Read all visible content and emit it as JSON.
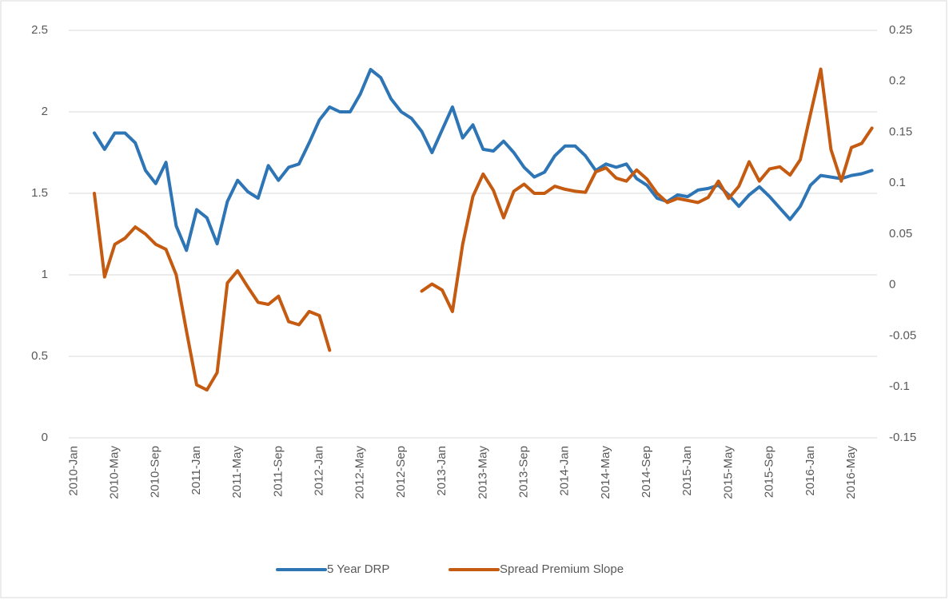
{
  "chart_data": {
    "type": "line",
    "categories": [
      "2010-Jan",
      null,
      null,
      null,
      "2010-May",
      null,
      null,
      null,
      "2010-Sep",
      null,
      null,
      null,
      "2011-Jan",
      null,
      null,
      null,
      "2011-May",
      null,
      null,
      null,
      "2011-Sep",
      null,
      null,
      null,
      "2012-Jan",
      null,
      null,
      null,
      "2012-May",
      null,
      null,
      null,
      "2012-Sep",
      null,
      null,
      null,
      "2013-Jan",
      null,
      null,
      null,
      "2013-May",
      null,
      null,
      null,
      "2013-Sep",
      null,
      null,
      null,
      "2014-Jan",
      null,
      null,
      null,
      "2014-May",
      null,
      null,
      null,
      "2014-Sep",
      null,
      null,
      null,
      "2015-Jan",
      null,
      null,
      null,
      "2015-May",
      null,
      null,
      null,
      "2015-Sep",
      null,
      null,
      null,
      "2016-Jan",
      null,
      null,
      null,
      "2016-May",
      null,
      null
    ],
    "series": [
      {
        "name": "5 Year DRP",
        "color": "#2e75b6",
        "axis": "y",
        "values": [
          null,
          null,
          1.87,
          1.77,
          1.87,
          1.87,
          1.81,
          1.64,
          1.56,
          1.69,
          1.3,
          1.15,
          1.4,
          1.35,
          1.19,
          1.45,
          1.58,
          1.51,
          1.47,
          1.67,
          1.58,
          1.66,
          1.68,
          1.81,
          1.95,
          2.03,
          2.0,
          2.0,
          2.11,
          2.26,
          2.21,
          2.08,
          2.0,
          1.96,
          1.88,
          1.75,
          1.89,
          2.03,
          1.84,
          1.92,
          1.77,
          1.76,
          1.82,
          1.75,
          1.66,
          1.6,
          1.63,
          1.73,
          1.79,
          1.79,
          1.73,
          1.64,
          1.68,
          1.66,
          1.68,
          1.59,
          1.55,
          1.47,
          1.45,
          1.49,
          1.48,
          1.52,
          1.53,
          1.55,
          1.49,
          1.42,
          1.49,
          1.54,
          1.48,
          1.41,
          1.34,
          1.42,
          1.55,
          1.61,
          1.6,
          1.59,
          1.61,
          1.62,
          1.64
        ]
      },
      {
        "name": "Spread Premium Slope",
        "color": "#c55a11",
        "axis": "y2",
        "values": [
          null,
          null,
          0.09,
          0.008,
          0.04,
          0.046,
          0.057,
          0.05,
          0.04,
          0.035,
          0.01,
          -0.045,
          -0.098,
          -0.103,
          -0.086,
          0.002,
          0.014,
          -0.002,
          -0.017,
          -0.019,
          -0.011,
          -0.036,
          -0.039,
          -0.026,
          -0.03,
          -0.064,
          null,
          null,
          null,
          null,
          null,
          null,
          null,
          null,
          -0.006,
          0.001,
          -0.005,
          -0.026,
          0.04,
          0.087,
          0.109,
          0.093,
          0.066,
          0.092,
          0.099,
          0.09,
          0.09,
          0.097,
          0.094,
          0.092,
          0.091,
          0.111,
          0.115,
          0.105,
          0.102,
          0.113,
          0.104,
          0.09,
          0.081,
          0.085,
          0.083,
          0.081,
          0.086,
          0.102,
          0.085,
          0.097,
          0.121,
          0.102,
          0.114,
          0.116,
          0.108,
          0.123,
          0.168,
          0.212,
          0.133,
          0.102,
          0.135,
          0.139,
          0.154
        ]
      }
    ],
    "ylim": [
      0,
      2.5
    ],
    "yticks": [
      0,
      0.5,
      1,
      1.5,
      2,
      2.5
    ],
    "y2lim": [
      -0.15,
      0.25
    ],
    "y2ticks": [
      -0.15,
      -0.1,
      -0.05,
      0,
      0.05,
      0.1,
      0.15,
      0.2,
      0.25
    ],
    "grid": true,
    "legend": "bottom"
  }
}
